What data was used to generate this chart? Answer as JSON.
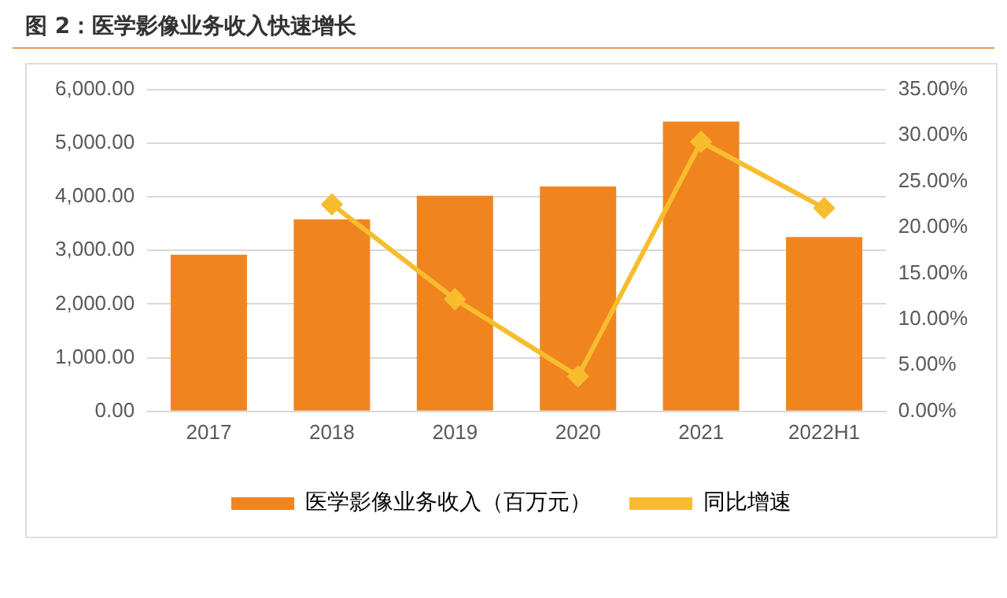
{
  "chart_data": {
    "type": "bar",
    "title": "图 2：医学影像业务收入快速增长",
    "categories": [
      "2017",
      "2018",
      "2019",
      "2020",
      "2021",
      "2022H1"
    ],
    "series": [
      {
        "name": "医学影像业务收入（百万元）",
        "color": "#f08520",
        "values": [
          2920,
          3580,
          4020,
          4190,
          5400,
          3250
        ]
      },
      {
        "name": "同比增速",
        "type": "line",
        "axis": "y2",
        "color": "#f7bd2e",
        "marker": "diamond",
        "values": [
          null,
          22.5,
          12.2,
          3.8,
          29.3,
          22.1
        ]
      }
    ],
    "ylim": [
      0,
      6000
    ],
    "yticks": [
      {
        "value": 0,
        "label": "0.00"
      },
      {
        "value": 1000,
        "label": "1,000.00"
      },
      {
        "value": 2000,
        "label": "2,000.00"
      },
      {
        "value": 3000,
        "label": "3,000.00"
      },
      {
        "value": 4000,
        "label": "4,000.00"
      },
      {
        "value": 5000,
        "label": "5,000.00"
      },
      {
        "value": 6000,
        "label": "6,000.00"
      }
    ],
    "y2lim": [
      0,
      35
    ],
    "y2ticks": [
      {
        "value": 0,
        "label": "0.00%"
      },
      {
        "value": 5,
        "label": "5.00%"
      },
      {
        "value": 10,
        "label": "10.00%"
      },
      {
        "value": 15,
        "label": "15.00%"
      },
      {
        "value": 20,
        "label": "20.00%"
      },
      {
        "value": 25,
        "label": "25.00%"
      },
      {
        "value": 30,
        "label": "30.00%"
      },
      {
        "value": 35,
        "label": "35.00%"
      }
    ],
    "grid": "y",
    "legend": "bottom"
  }
}
